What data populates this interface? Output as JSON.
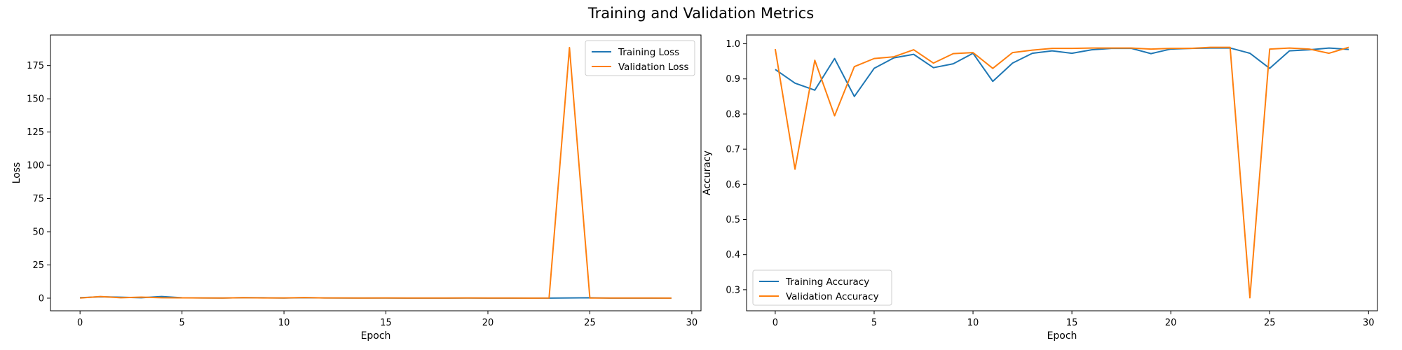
{
  "suptitle": "Training and Validation Metrics",
  "colors": {
    "training": "#1f77b4",
    "validation": "#ff7f0e"
  },
  "chart_data": [
    {
      "type": "line",
      "xlabel": "Epoch",
      "ylabel": "Loss",
      "xlim": [
        -1.45,
        30.45
      ],
      "ylim": [
        -9.5,
        198
      ],
      "xticks": [
        0,
        5,
        10,
        15,
        20,
        25,
        30
      ],
      "yticks": [
        0,
        25,
        50,
        75,
        100,
        125,
        150,
        175
      ],
      "legend_position": "upper right",
      "grid": false,
      "x": [
        0,
        1,
        2,
        3,
        4,
        5,
        6,
        7,
        8,
        9,
        10,
        11,
        12,
        13,
        14,
        15,
        16,
        17,
        18,
        19,
        20,
        21,
        22,
        23,
        24,
        25,
        26,
        27,
        28,
        29
      ],
      "series": [
        {
          "name": "Training Loss",
          "color": "#1f77b4",
          "values": [
            0.35,
            1.0,
            0.7,
            0.3,
            1.2,
            0.3,
            0.15,
            0.12,
            0.35,
            0.28,
            0.1,
            0.4,
            0.2,
            0.12,
            0.08,
            0.1,
            0.06,
            0.05,
            0.05,
            0.1,
            0.06,
            0.05,
            0.04,
            0.04,
            0.15,
            0.3,
            0.06,
            0.05,
            0.04,
            0.05
          ]
        },
        {
          "name": "Validation Loss",
          "color": "#ff7f0e",
          "values": [
            0.1,
            1.2,
            0.3,
            0.8,
            0.3,
            0.25,
            0.15,
            0.1,
            0.35,
            0.2,
            0.15,
            0.45,
            0.2,
            0.15,
            0.1,
            0.2,
            0.1,
            0.1,
            0.1,
            0.2,
            0.1,
            0.1,
            0.05,
            0.1,
            188.5,
            0.1,
            0.08,
            0.08,
            0.09,
            0.05
          ]
        }
      ]
    },
    {
      "type": "line",
      "xlabel": "Epoch",
      "ylabel": "Accuracy",
      "xlim": [
        -1.45,
        30.45
      ],
      "ylim": [
        0.24,
        1.025
      ],
      "xticks": [
        0,
        5,
        10,
        15,
        20,
        25,
        30
      ],
      "yticks": [
        0.3,
        0.4,
        0.5,
        0.6,
        0.7,
        0.8,
        0.9,
        1.0
      ],
      "ytick_labels": [
        "0.3",
        "0.4",
        "0.5",
        "0.6",
        "0.7",
        "0.8",
        "0.9",
        "1.0"
      ],
      "legend_position": "lower left",
      "grid": false,
      "x": [
        0,
        1,
        2,
        3,
        4,
        5,
        6,
        7,
        8,
        9,
        10,
        11,
        12,
        13,
        14,
        15,
        16,
        17,
        18,
        19,
        20,
        21,
        22,
        23,
        24,
        25,
        26,
        27,
        28,
        29
      ],
      "series": [
        {
          "name": "Training Accuracy",
          "color": "#1f77b4",
          "values": [
            0.927,
            0.888,
            0.868,
            0.958,
            0.85,
            0.93,
            0.96,
            0.97,
            0.932,
            0.943,
            0.973,
            0.893,
            0.945,
            0.973,
            0.98,
            0.973,
            0.983,
            0.987,
            0.987,
            0.972,
            0.985,
            0.987,
            0.988,
            0.988,
            0.973,
            0.93,
            0.98,
            0.983,
            0.988,
            0.984
          ]
        },
        {
          "name": "Validation Accuracy",
          "color": "#ff7f0e",
          "values": [
            0.985,
            0.643,
            0.953,
            0.795,
            0.935,
            0.958,
            0.963,
            0.983,
            0.945,
            0.972,
            0.975,
            0.93,
            0.975,
            0.982,
            0.987,
            0.987,
            0.988,
            0.988,
            0.988,
            0.985,
            0.987,
            0.987,
            0.99,
            0.99,
            0.277,
            0.985,
            0.988,
            0.985,
            0.973,
            0.99
          ]
        }
      ]
    }
  ]
}
